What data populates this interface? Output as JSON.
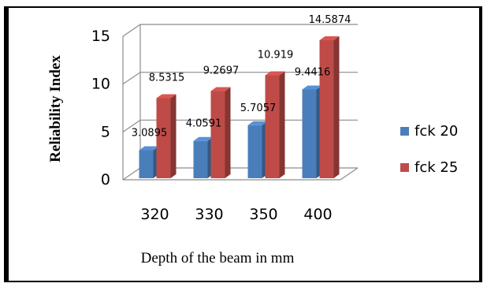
{
  "chart_data": {
    "type": "bar",
    "categories": [
      "320",
      "330",
      "350",
      "400"
    ],
    "series": [
      {
        "name": "fck 20",
        "values": [
          3.0895,
          4.0591,
          5.7057,
          9.4416
        ],
        "color": "#4A7EBB"
      },
      {
        "name": "fck 25",
        "values": [
          8.5315,
          9.2697,
          10.919,
          14.5874
        ],
        "color": "#BE4B48"
      }
    ],
    "value_labels": [
      [
        "3.0895",
        "4.0591",
        "5.7057",
        "9.4416"
      ],
      [
        "8.5315",
        "9.2697",
        "10.919",
        "14.5874"
      ]
    ],
    "ylabel": "Reliability Index",
    "xlabel": "Depth of the beam in mm",
    "ylim": [
      0,
      15
    ],
    "yticks": [
      "0",
      "5",
      "10",
      "15"
    ],
    "grid": true,
    "legend_position": "right",
    "style": "3d-clustered-column"
  }
}
